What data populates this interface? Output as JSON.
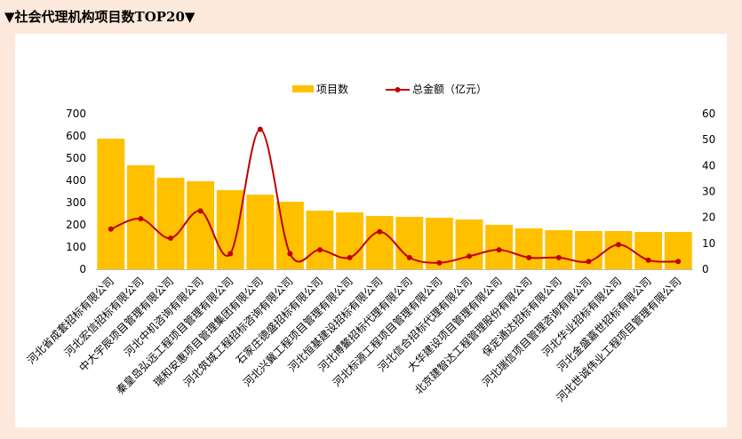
{
  "page": {
    "title": "▼社会代理机构项目数TOP20▼"
  },
  "chart_data": {
    "type": "bar",
    "title": "",
    "categories": [
      "河北省成套招标有限公司",
      "河北宏信招标有限公司",
      "中大宇辰项目管理有限公司",
      "河北中机咨询有限公司",
      "秦皇岛弘远工程项目管理有限公司",
      "瑞和安惠项目管理集团有限公司",
      "河北筑城工程招标咨询有限公司",
      "石家庄德盛招标有限公司",
      "河北兴冀工程项目管理有限公司",
      "河北恒基建设招标有限公司",
      "河北博鳌招标代理有限公司",
      "河北标源工程项目管理有限公司",
      "河北信合招标代理有限公司",
      "大华建设项目管理有限公司",
      "北京建智达工程管理股份有限公司",
      "保定通达招标有限公司",
      "河北瑞信项目管理咨询有限公司",
      "河北华业招标有限公司",
      "河北金盛嘉世招标有限公司",
      "河北世诚伟业工程项目管理有限公司"
    ],
    "series": [
      {
        "name": "项目数",
        "type": "bar",
        "axis": "left",
        "color": "#ffc000",
        "values": [
          588,
          468,
          412,
          396,
          356,
          336,
          304,
          264,
          256,
          240,
          236,
          232,
          224,
          200,
          184,
          176,
          172,
          172,
          168,
          168
        ]
      },
      {
        "name": "总金额（亿元）",
        "type": "line",
        "axis": "right",
        "color": "#c00000",
        "values": [
          15.5,
          19.5,
          12.0,
          22.5,
          6.0,
          54.0,
          6.0,
          7.5,
          4.5,
          14.5,
          4.5,
          2.5,
          5.0,
          7.5,
          4.5,
          4.5,
          3.0,
          9.5,
          3.5,
          3.0
        ]
      }
    ],
    "ylim_left": [
      0,
      700
    ],
    "yticks_left": [
      0,
      100,
      200,
      300,
      400,
      500,
      600,
      700
    ],
    "ylim_right": [
      0,
      60
    ],
    "yticks_right": [
      0,
      10,
      20,
      30,
      40,
      50,
      60
    ],
    "grid": false,
    "legend": "top"
  }
}
